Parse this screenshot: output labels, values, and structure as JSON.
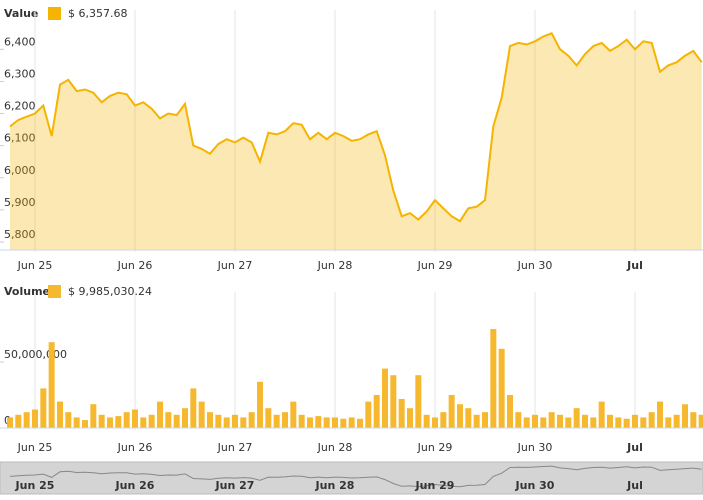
{
  "chart_data": [
    {
      "type": "area",
      "header": "Value",
      "current_label": "$ 6,357.68",
      "categories": [
        null,
        null,
        null,
        "Jun 25",
        null,
        null,
        null,
        null,
        null,
        null,
        null,
        null,
        null,
        null,
        null,
        "Jun 26",
        null,
        null,
        null,
        null,
        null,
        null,
        null,
        null,
        null,
        null,
        null,
        "Jun 27",
        null,
        null,
        null,
        null,
        null,
        null,
        null,
        null,
        null,
        null,
        null,
        "Jun 28",
        null,
        null,
        null,
        null,
        null,
        null,
        null,
        null,
        null,
        null,
        null,
        "Jun 29",
        null,
        null,
        null,
        null,
        null,
        null,
        null,
        null,
        null,
        null,
        null,
        "Jun 30",
        null,
        null,
        null,
        null,
        null,
        null,
        null,
        null,
        null,
        null,
        null,
        "Jul",
        null,
        null,
        null,
        null,
        null,
        null,
        null,
        null
      ],
      "series": [
        {
          "name": "Value",
          "color": "#f5b400",
          "values": [
            6160,
            6180,
            6190,
            6200,
            6225,
            6130,
            6290,
            6305,
            6270,
            6275,
            6265,
            6235,
            6255,
            6265,
            6260,
            6225,
            6235,
            6215,
            6185,
            6200,
            6195,
            6230,
            6100,
            6090,
            6075,
            6105,
            6120,
            6110,
            6125,
            6110,
            6050,
            6140,
            6135,
            6145,
            6170,
            6165,
            6120,
            6140,
            6120,
            6140,
            6130,
            6115,
            6120,
            6135,
            6145,
            6070,
            5960,
            5880,
            5890,
            5870,
            5895,
            5930,
            5905,
            5880,
            5865,
            5905,
            5910,
            5930,
            6160,
            6250,
            6410,
            6420,
            6415,
            6425,
            6440,
            6450,
            6400,
            6380,
            6350,
            6385,
            6410,
            6420,
            6395,
            6410,
            6430,
            6400,
            6425,
            6420,
            6330,
            6350,
            6360,
            6380,
            6395,
            6360
          ]
        }
      ],
      "ylim": [
        5775,
        6510
      ],
      "yticks": [
        {
          "value": 5800,
          "label": "5,800"
        },
        {
          "value": 5900,
          "label": "5,900"
        },
        {
          "value": 6000,
          "label": "6,000"
        },
        {
          "value": 6100,
          "label": "6,100"
        },
        {
          "value": 6200,
          "label": "6,200"
        },
        {
          "value": 6300,
          "label": "6,300"
        },
        {
          "value": 6400,
          "label": "6,400"
        }
      ],
      "grid": true
    },
    {
      "type": "bar",
      "header": "Volume",
      "current_label": "$ 9,985,030.24",
      "categories": [
        null,
        null,
        null,
        "Jun 25",
        null,
        null,
        null,
        null,
        null,
        null,
        null,
        null,
        null,
        null,
        null,
        "Jun 26",
        null,
        null,
        null,
        null,
        null,
        null,
        null,
        null,
        null,
        null,
        null,
        "Jun 27",
        null,
        null,
        null,
        null,
        null,
        null,
        null,
        null,
        null,
        null,
        null,
        "Jun 28",
        null,
        null,
        null,
        null,
        null,
        null,
        null,
        null,
        null,
        null,
        null,
        "Jun 29",
        null,
        null,
        null,
        null,
        null,
        null,
        null,
        null,
        null,
        null,
        null,
        "Jun 30",
        null,
        null,
        null,
        null,
        null,
        null,
        null,
        null,
        null,
        null,
        null,
        "Jul",
        null,
        null,
        null,
        null,
        null,
        null,
        null,
        null
      ],
      "series": [
        {
          "name": "Volume",
          "color": "#f5b82e",
          "values": [
            8000000,
            10000000,
            12000000,
            14000000,
            30000000,
            65000000,
            20000000,
            12000000,
            8000000,
            6000000,
            18000000,
            10000000,
            8000000,
            9000000,
            12000000,
            14000000,
            8000000,
            10000000,
            20000000,
            12000000,
            10000000,
            15000000,
            30000000,
            20000000,
            12000000,
            10000000,
            8000000,
            10000000,
            8000000,
            12000000,
            35000000,
            15000000,
            10000000,
            12000000,
            20000000,
            10000000,
            8000000,
            9000000,
            8000000,
            8000000,
            7000000,
            8000000,
            7000000,
            20000000,
            25000000,
            45000000,
            40000000,
            22000000,
            15000000,
            40000000,
            10000000,
            8000000,
            12000000,
            25000000,
            18000000,
            15000000,
            10000000,
            12000000,
            75000000,
            60000000,
            25000000,
            12000000,
            8000000,
            10000000,
            8000000,
            12000000,
            10000000,
            8000000,
            15000000,
            10000000,
            8000000,
            20000000,
            10000000,
            8000000,
            7000000,
            10000000,
            8000000,
            12000000,
            20000000,
            8000000,
            10000000,
            18000000,
            12000000,
            10000000
          ]
        }
      ],
      "ylim": [
        0,
        100000000
      ],
      "yticks": [
        0,
        {
          "value": 50000000,
          "label": "50,000,000"
        }
      ],
      "grid": true
    }
  ]
}
